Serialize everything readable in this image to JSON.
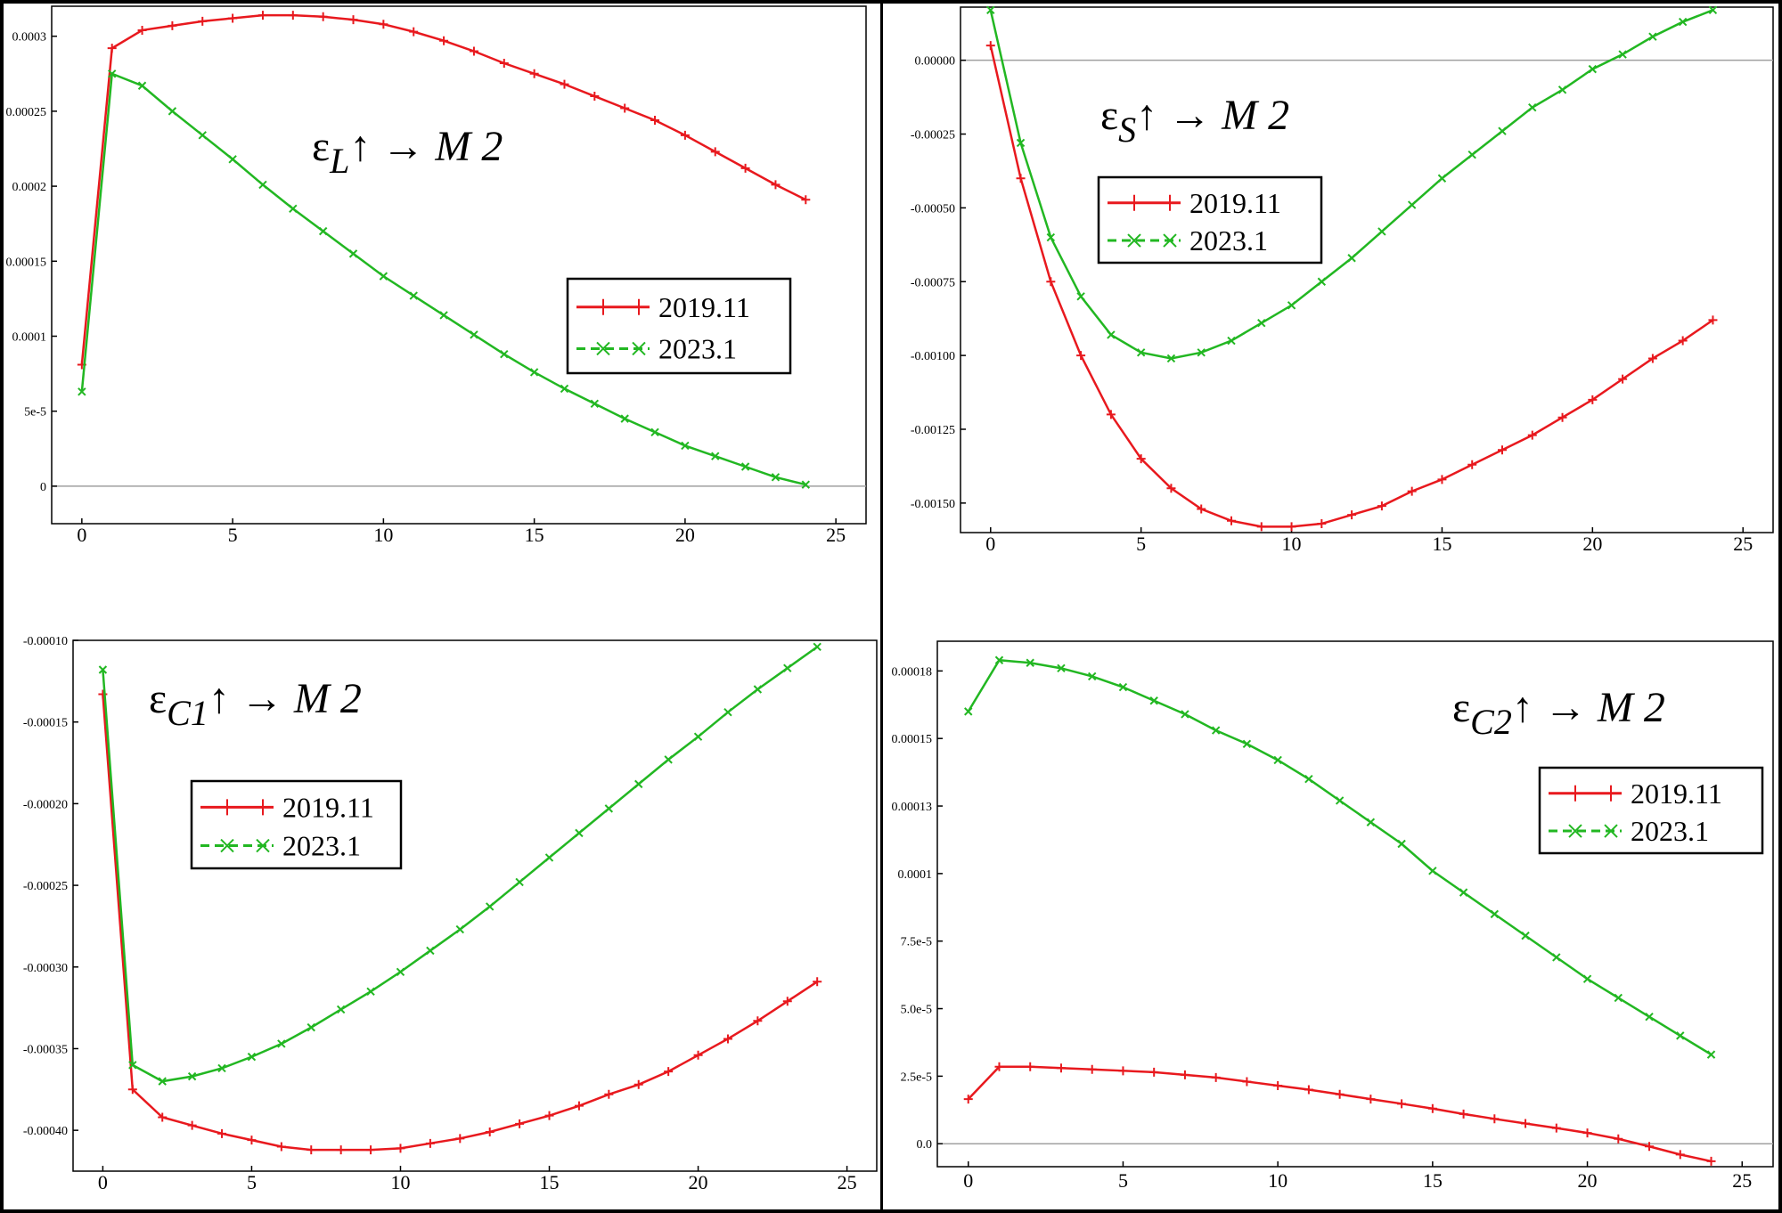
{
  "colors": {
    "s2019": "#e8191e",
    "s2023": "#22b722",
    "axis": "#000000",
    "zero_line": "#a0a0a0"
  },
  "legend": {
    "s2019": "2019.11",
    "s2023": "2023.1"
  },
  "chart_data": [
    {
      "type": "line",
      "title_main": "ε",
      "title_sub": "L",
      "title_tail": "↑ → M 2",
      "xlim": [
        -1,
        26
      ],
      "ylim": [
        -2.5e-05,
        0.00032
      ],
      "xticks": [
        "0",
        "5",
        "10",
        "15",
        "20",
        "25"
      ],
      "yticks": [
        {
          "v": 0,
          "label": "0"
        },
        {
          "v": 5e-05,
          "label": "5e-5"
        },
        {
          "v": 0.0001,
          "label": "0.0001"
        },
        {
          "v": 0.00015,
          "label": "0.00015"
        },
        {
          "v": 0.0002,
          "label": "0.0002"
        },
        {
          "v": 0.00025,
          "label": "0.00025"
        },
        {
          "v": 0.0003,
          "label": "0.0003"
        }
      ],
      "zero_line": true,
      "legend_position": "center-right",
      "series": [
        {
          "name": "2019.11",
          "x": [
            0,
            1,
            2,
            3,
            4,
            5,
            6,
            7,
            8,
            9,
            10,
            11,
            12,
            13,
            14,
            15,
            16,
            17,
            18,
            19,
            20,
            21,
            22,
            23,
            24
          ],
          "values": [
            8.1e-05,
            0.000292,
            0.000304,
            0.000307,
            0.00031,
            0.000312,
            0.000314,
            0.000314,
            0.000313,
            0.000311,
            0.000308,
            0.000303,
            0.000297,
            0.00029,
            0.000282,
            0.000275,
            0.000268,
            0.00026,
            0.000252,
            0.000244,
            0.000234,
            0.000223,
            0.000212,
            0.000201,
            0.000191
          ]
        },
        {
          "name": "2023.1",
          "x": [
            0,
            1,
            2,
            3,
            4,
            5,
            6,
            7,
            8,
            9,
            10,
            11,
            12,
            13,
            14,
            15,
            16,
            17,
            18,
            19,
            20,
            21,
            22,
            23,
            24
          ],
          "values": [
            6.3e-05,
            0.000275,
            0.000267,
            0.00025,
            0.000234,
            0.000218,
            0.000201,
            0.000185,
            0.00017,
            0.000155,
            0.00014,
            0.000127,
            0.000114,
            0.000101,
            8.8e-05,
            7.6e-05,
            6.5e-05,
            5.5e-05,
            4.5e-05,
            3.6e-05,
            2.7e-05,
            2e-05,
            1.3e-05,
            6e-06,
            1e-06
          ]
        }
      ]
    },
    {
      "type": "line",
      "title_main": "ε",
      "title_sub": "S",
      "title_tail": "↑ → M 2",
      "xlim": [
        -1,
        26
      ],
      "ylim": [
        -0.0016,
        0.00018
      ],
      "xticks": [
        "0",
        "5",
        "10",
        "15",
        "20",
        "25"
      ],
      "yticks": [
        {
          "v": 0,
          "label": "0.00000"
        },
        {
          "v": -0.00025,
          "label": "-0.00025"
        },
        {
          "v": -0.0005,
          "label": "-0.00050"
        },
        {
          "v": -0.00075,
          "label": "-0.00075"
        },
        {
          "v": -0.001,
          "label": "-0.00100"
        },
        {
          "v": -0.00125,
          "label": "-0.00125"
        },
        {
          "v": -0.0015,
          "label": "-0.00150"
        }
      ],
      "zero_line": true,
      "legend_position": "top-left",
      "series": [
        {
          "name": "2019.11",
          "x": [
            0,
            1,
            2,
            3,
            4,
            5,
            6,
            7,
            8,
            9,
            10,
            11,
            12,
            13,
            14,
            15,
            16,
            17,
            18,
            19,
            20,
            21,
            22,
            23,
            24
          ],
          "values": [
            5e-05,
            -0.0004,
            -0.00075,
            -0.001,
            -0.0012,
            -0.00135,
            -0.00145,
            -0.00152,
            -0.00156,
            -0.00158,
            -0.00158,
            -0.00157,
            -0.00154,
            -0.00151,
            -0.00146,
            -0.00142,
            -0.00137,
            -0.00132,
            -0.00127,
            -0.00121,
            -0.00115,
            -0.00108,
            -0.00101,
            -0.00095,
            -0.00088
          ]
        },
        {
          "name": "2023.1",
          "x": [
            0,
            1,
            2,
            3,
            4,
            5,
            6,
            7,
            8,
            9,
            10,
            11,
            12,
            13,
            14,
            15,
            16,
            17,
            18,
            19,
            20,
            21,
            22,
            23,
            24
          ],
          "values": [
            0.00017,
            -0.00028,
            -0.0006,
            -0.0008,
            -0.00093,
            -0.00099,
            -0.00101,
            -0.00099,
            -0.00095,
            -0.00089,
            -0.00083,
            -0.00075,
            -0.00067,
            -0.00058,
            -0.00049,
            -0.0004,
            -0.00032,
            -0.00024,
            -0.00016,
            -0.0001,
            -3e-05,
            2e-05,
            8e-05,
            0.00013,
            0.00017
          ]
        }
      ]
    },
    {
      "type": "line",
      "title_main": "ε",
      "title_sub": "C1",
      "title_tail": "↑ → M 2",
      "xlim": [
        -1,
        26
      ],
      "ylim": [
        -0.000425,
        -0.0001
      ],
      "xticks": [
        "0",
        "5",
        "10",
        "15",
        "20",
        "25"
      ],
      "yticks": [
        {
          "v": -0.0001,
          "label": "-0.00010"
        },
        {
          "v": -0.00015,
          "label": "-0.00015"
        },
        {
          "v": -0.0002,
          "label": "-0.00020"
        },
        {
          "v": -0.00025,
          "label": "-0.00025"
        },
        {
          "v": -0.0003,
          "label": "-0.00030"
        },
        {
          "v": -0.00035,
          "label": "-0.00035"
        },
        {
          "v": -0.0004,
          "label": "-0.00040"
        }
      ],
      "zero_line": false,
      "legend_position": "top-left",
      "series": [
        {
          "name": "2019.11",
          "x": [
            0,
            1,
            2,
            3,
            4,
            5,
            6,
            7,
            8,
            9,
            10,
            11,
            12,
            13,
            14,
            15,
            16,
            17,
            18,
            19,
            20,
            21,
            22,
            23,
            24
          ],
          "values": [
            -0.000133,
            -0.000375,
            -0.000392,
            -0.000397,
            -0.000402,
            -0.000406,
            -0.00041,
            -0.000412,
            -0.000412,
            -0.000412,
            -0.000411,
            -0.000408,
            -0.000405,
            -0.000401,
            -0.000396,
            -0.000391,
            -0.000385,
            -0.000378,
            -0.000372,
            -0.000364,
            -0.000354,
            -0.000344,
            -0.000333,
            -0.000321,
            -0.000309
          ]
        },
        {
          "name": "2023.1",
          "x": [
            0,
            1,
            2,
            3,
            4,
            5,
            6,
            7,
            8,
            9,
            10,
            11,
            12,
            13,
            14,
            15,
            16,
            17,
            18,
            19,
            20,
            21,
            22,
            23,
            24
          ],
          "values": [
            -0.000118,
            -0.00036,
            -0.00037,
            -0.000367,
            -0.000362,
            -0.000355,
            -0.000347,
            -0.000337,
            -0.000326,
            -0.000315,
            -0.000303,
            -0.00029,
            -0.000277,
            -0.000263,
            -0.000248,
            -0.000233,
            -0.000218,
            -0.000203,
            -0.000188,
            -0.000173,
            -0.000159,
            -0.000144,
            -0.00013,
            -0.000117,
            -0.000104
          ]
        }
      ]
    },
    {
      "type": "line",
      "title_main": "ε",
      "title_sub": "C2",
      "title_tail": "↑ → M 2",
      "xlim": [
        -1,
        26
      ],
      "ylim": [
        -8.5e-06,
        0.000186
      ],
      "xticks": [
        "0",
        "5",
        "10",
        "15",
        "20",
        "25"
      ],
      "yticks": [
        {
          "v": 0,
          "label": "0.0"
        },
        {
          "v": 2.5e-05,
          "label": "2.5e-5"
        },
        {
          "v": 5e-05,
          "label": "5.0e-5"
        },
        {
          "v": 7.5e-05,
          "label": "7.5e-5"
        },
        {
          "v": 0.0001,
          "label": "0.0001"
        },
        {
          "v": 0.000125,
          "label": "0.00013"
        },
        {
          "v": 0.00015,
          "label": "0.00015"
        },
        {
          "v": 0.000175,
          "label": "0.00018"
        }
      ],
      "zero_line": true,
      "legend_position": "top-right",
      "series": [
        {
          "name": "2019.11",
          "x": [
            0,
            1,
            2,
            3,
            4,
            5,
            6,
            7,
            8,
            9,
            10,
            11,
            12,
            13,
            14,
            15,
            16,
            17,
            18,
            19,
            20,
            21,
            22,
            23,
            24
          ],
          "values": [
            1.65e-05,
            2.85e-05,
            2.85e-05,
            2.8e-05,
            2.75e-05,
            2.7e-05,
            2.65e-05,
            2.55e-05,
            2.45e-05,
            2.3e-05,
            2.15e-05,
            2e-05,
            1.83e-05,
            1.65e-05,
            1.48e-05,
            1.3e-05,
            1.1e-05,
            9.2e-06,
            7.5e-06,
            5.8e-06,
            4e-06,
            1.8e-06,
            -1e-06,
            -4e-06,
            -6.5e-06
          ]
        },
        {
          "name": "2023.1",
          "x": [
            0,
            1,
            2,
            3,
            4,
            5,
            6,
            7,
            8,
            9,
            10,
            11,
            12,
            13,
            14,
            15,
            16,
            17,
            18,
            19,
            20,
            21,
            22,
            23,
            24
          ],
          "values": [
            0.00016,
            0.000179,
            0.000178,
            0.000176,
            0.000173,
            0.000169,
            0.000164,
            0.000159,
            0.000153,
            0.000148,
            0.000142,
            0.000135,
            0.000127,
            0.000119,
            0.000111,
            0.000101,
            9.3e-05,
            8.5e-05,
            7.7e-05,
            6.9e-05,
            6.1e-05,
            5.4e-05,
            4.7e-05,
            4e-05,
            3.3e-05
          ]
        }
      ]
    }
  ]
}
